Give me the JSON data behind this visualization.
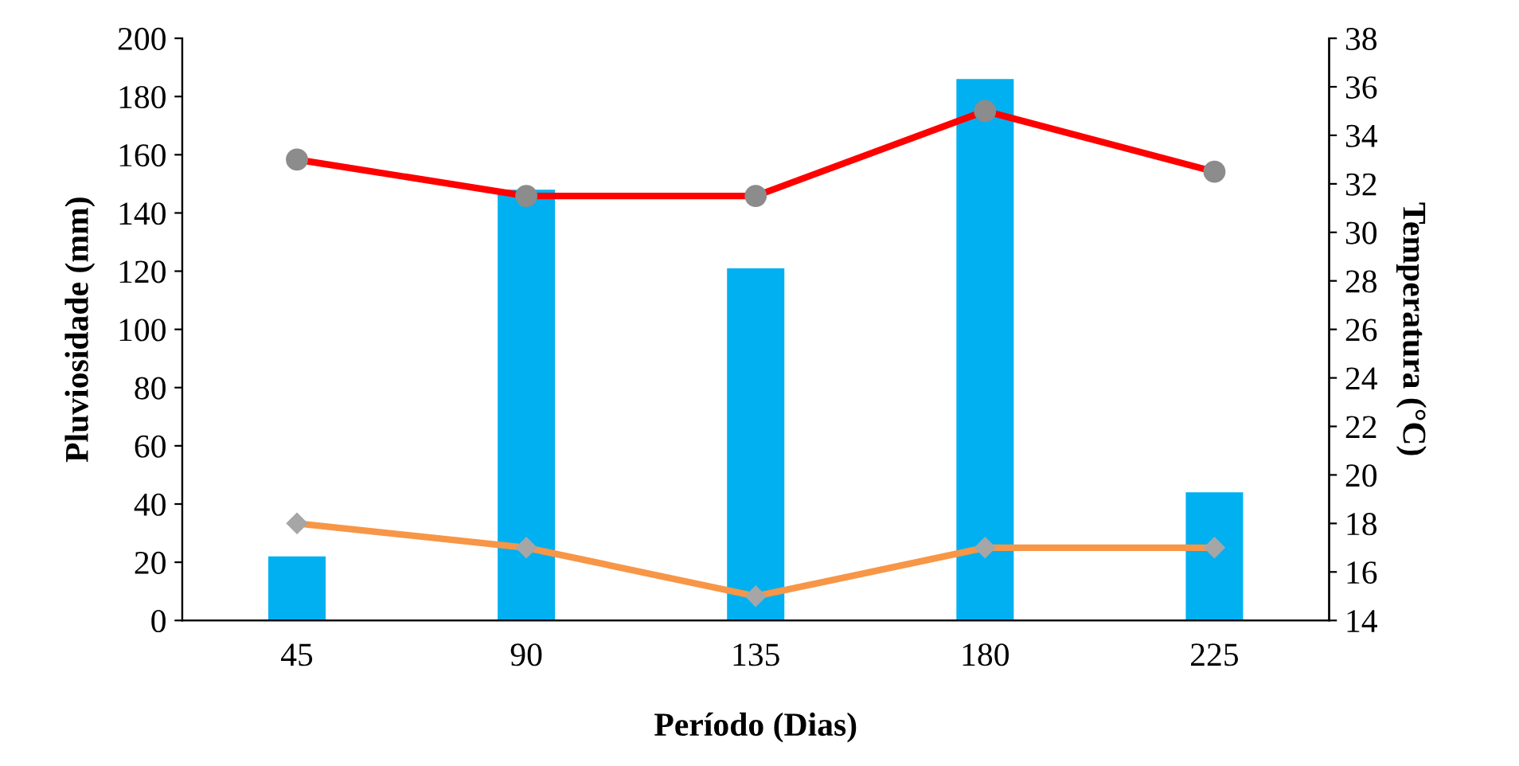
{
  "chart_data": {
    "type": "bar",
    "xlabel": "Período (Dias)",
    "ylabel": "Pluviosidade (mm)",
    "y2label": "Temperatura (°C)",
    "categories": [
      "45",
      "90",
      "135",
      "180",
      "225"
    ],
    "series": [
      {
        "color": "#00b0f0",
        "values": [
          22,
          148,
          121,
          186,
          44
        ]
      },
      {
        "type": "line",
        "axis": "y2",
        "color": "#ff0000",
        "marker": "circle",
        "values": [
          33,
          31.5,
          31.5,
          35,
          32.5
        ]
      },
      {
        "type": "line",
        "axis": "y2",
        "color": "#f79646",
        "marker": "diamond",
        "values": [
          18,
          17,
          15,
          17,
          17
        ]
      }
    ],
    "ylim": [
      0,
      200
    ],
    "yticks": [
      0,
      20,
      40,
      60,
      80,
      100,
      120,
      140,
      160,
      180,
      200
    ],
    "y2lim": [
      14,
      38
    ],
    "y2ticks": [
      14,
      16,
      18,
      20,
      22,
      24,
      26,
      28,
      30,
      32,
      34,
      36,
      38
    ],
    "grid": false,
    "legend": false
  }
}
